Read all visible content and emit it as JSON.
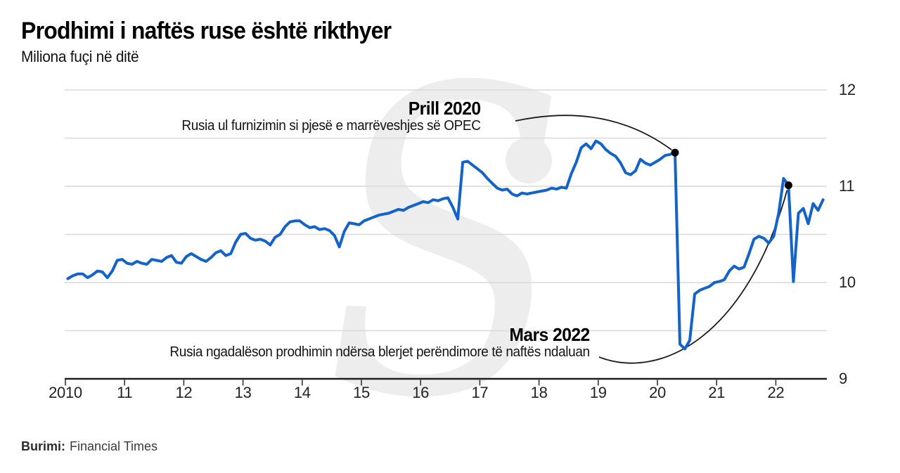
{
  "header": {
    "title": "Prodhimi i naftës ruse është rikthyer",
    "subtitle": "Miliona fuçi në ditë"
  },
  "source": {
    "label": "Burimi:",
    "value": "Financial Times"
  },
  "annotations": {
    "prill": {
      "label": "Prill 2020",
      "text": "Rusia ul furnizimin si pjesë e marrëveshjes së OPEC"
    },
    "mars": {
      "label": "Mars 2022",
      "text": "Rusia ngadalëson prodhimin ndërsa blerjet perëndimore të naftës ndaluan"
    }
  },
  "colors": {
    "line": "#1363c8",
    "grid": "#d9d9d9",
    "axis": "#1f1f1f",
    "tick": "#333333",
    "dot": "#000000",
    "annotation_curve": "#1a1a1a",
    "watermark": "#ededed"
  },
  "chart_data": {
    "type": "line",
    "title": "Prodhimi i naftës ruse është rikthyer",
    "ylabel": "Miliona fuçi në ditë",
    "x_start": "2010-01",
    "frequency": "monthly",
    "x_tick_labels": [
      "2010",
      "11",
      "12",
      "13",
      "14",
      "15",
      "16",
      "17",
      "18",
      "19",
      "20",
      "21",
      "22"
    ],
    "y_ticks": [
      12,
      11,
      10,
      9
    ],
    "y_tick_labels": [
      "12",
      "11",
      "10",
      "9"
    ],
    "ylim": [
      9,
      12
    ],
    "gridline_step": 0.5,
    "legend": false,
    "series": [
      {
        "name": "Prodhimi i naftës ruse (miliona fuçi në ditë)",
        "values": [
          10.04,
          10.07,
          10.09,
          10.09,
          10.05,
          10.08,
          10.12,
          10.11,
          10.05,
          10.12,
          10.23,
          10.24,
          10.2,
          10.19,
          10.22,
          10.2,
          10.19,
          10.24,
          10.23,
          10.22,
          10.26,
          10.28,
          10.21,
          10.2,
          10.27,
          10.3,
          10.27,
          10.24,
          10.22,
          10.26,
          10.31,
          10.33,
          10.28,
          10.3,
          10.42,
          10.5,
          10.51,
          10.46,
          10.44,
          10.45,
          10.43,
          10.39,
          10.47,
          10.5,
          10.58,
          10.63,
          10.64,
          10.64,
          10.6,
          10.57,
          10.58,
          10.55,
          10.56,
          10.54,
          10.49,
          10.37,
          10.53,
          10.62,
          10.61,
          10.6,
          10.64,
          10.66,
          10.68,
          10.7,
          10.71,
          10.72,
          10.74,
          10.76,
          10.75,
          10.78,
          10.8,
          10.82,
          10.84,
          10.83,
          10.86,
          10.85,
          10.87,
          10.88,
          10.78,
          10.66,
          11.25,
          11.26,
          11.22,
          11.18,
          11.14,
          11.08,
          11.03,
          10.98,
          10.96,
          10.97,
          10.92,
          10.9,
          10.93,
          10.92,
          10.93,
          10.94,
          10.95,
          10.96,
          10.98,
          10.97,
          10.99,
          10.98,
          11.13,
          11.25,
          11.4,
          11.44,
          11.39,
          11.47,
          11.44,
          11.38,
          11.34,
          11.31,
          11.24,
          11.14,
          11.12,
          11.16,
          11.28,
          11.24,
          11.22,
          11.25,
          11.28,
          11.32,
          11.33,
          11.35,
          9.36,
          9.31,
          9.4,
          9.88,
          9.92,
          9.94,
          9.96,
          10.0,
          10.01,
          10.03,
          10.12,
          10.17,
          10.14,
          10.16,
          10.3,
          10.45,
          10.48,
          10.46,
          10.41,
          10.48,
          10.72,
          11.08,
          11.01,
          10.01,
          10.72,
          10.77,
          10.61,
          10.82,
          10.75,
          10.86
        ]
      }
    ],
    "markers": [
      {
        "month": "2020-04",
        "value": 11.35,
        "annotation": "Prill 2020"
      },
      {
        "month": "2022-03",
        "value": 11.01,
        "annotation": "Mars 2022"
      }
    ]
  }
}
